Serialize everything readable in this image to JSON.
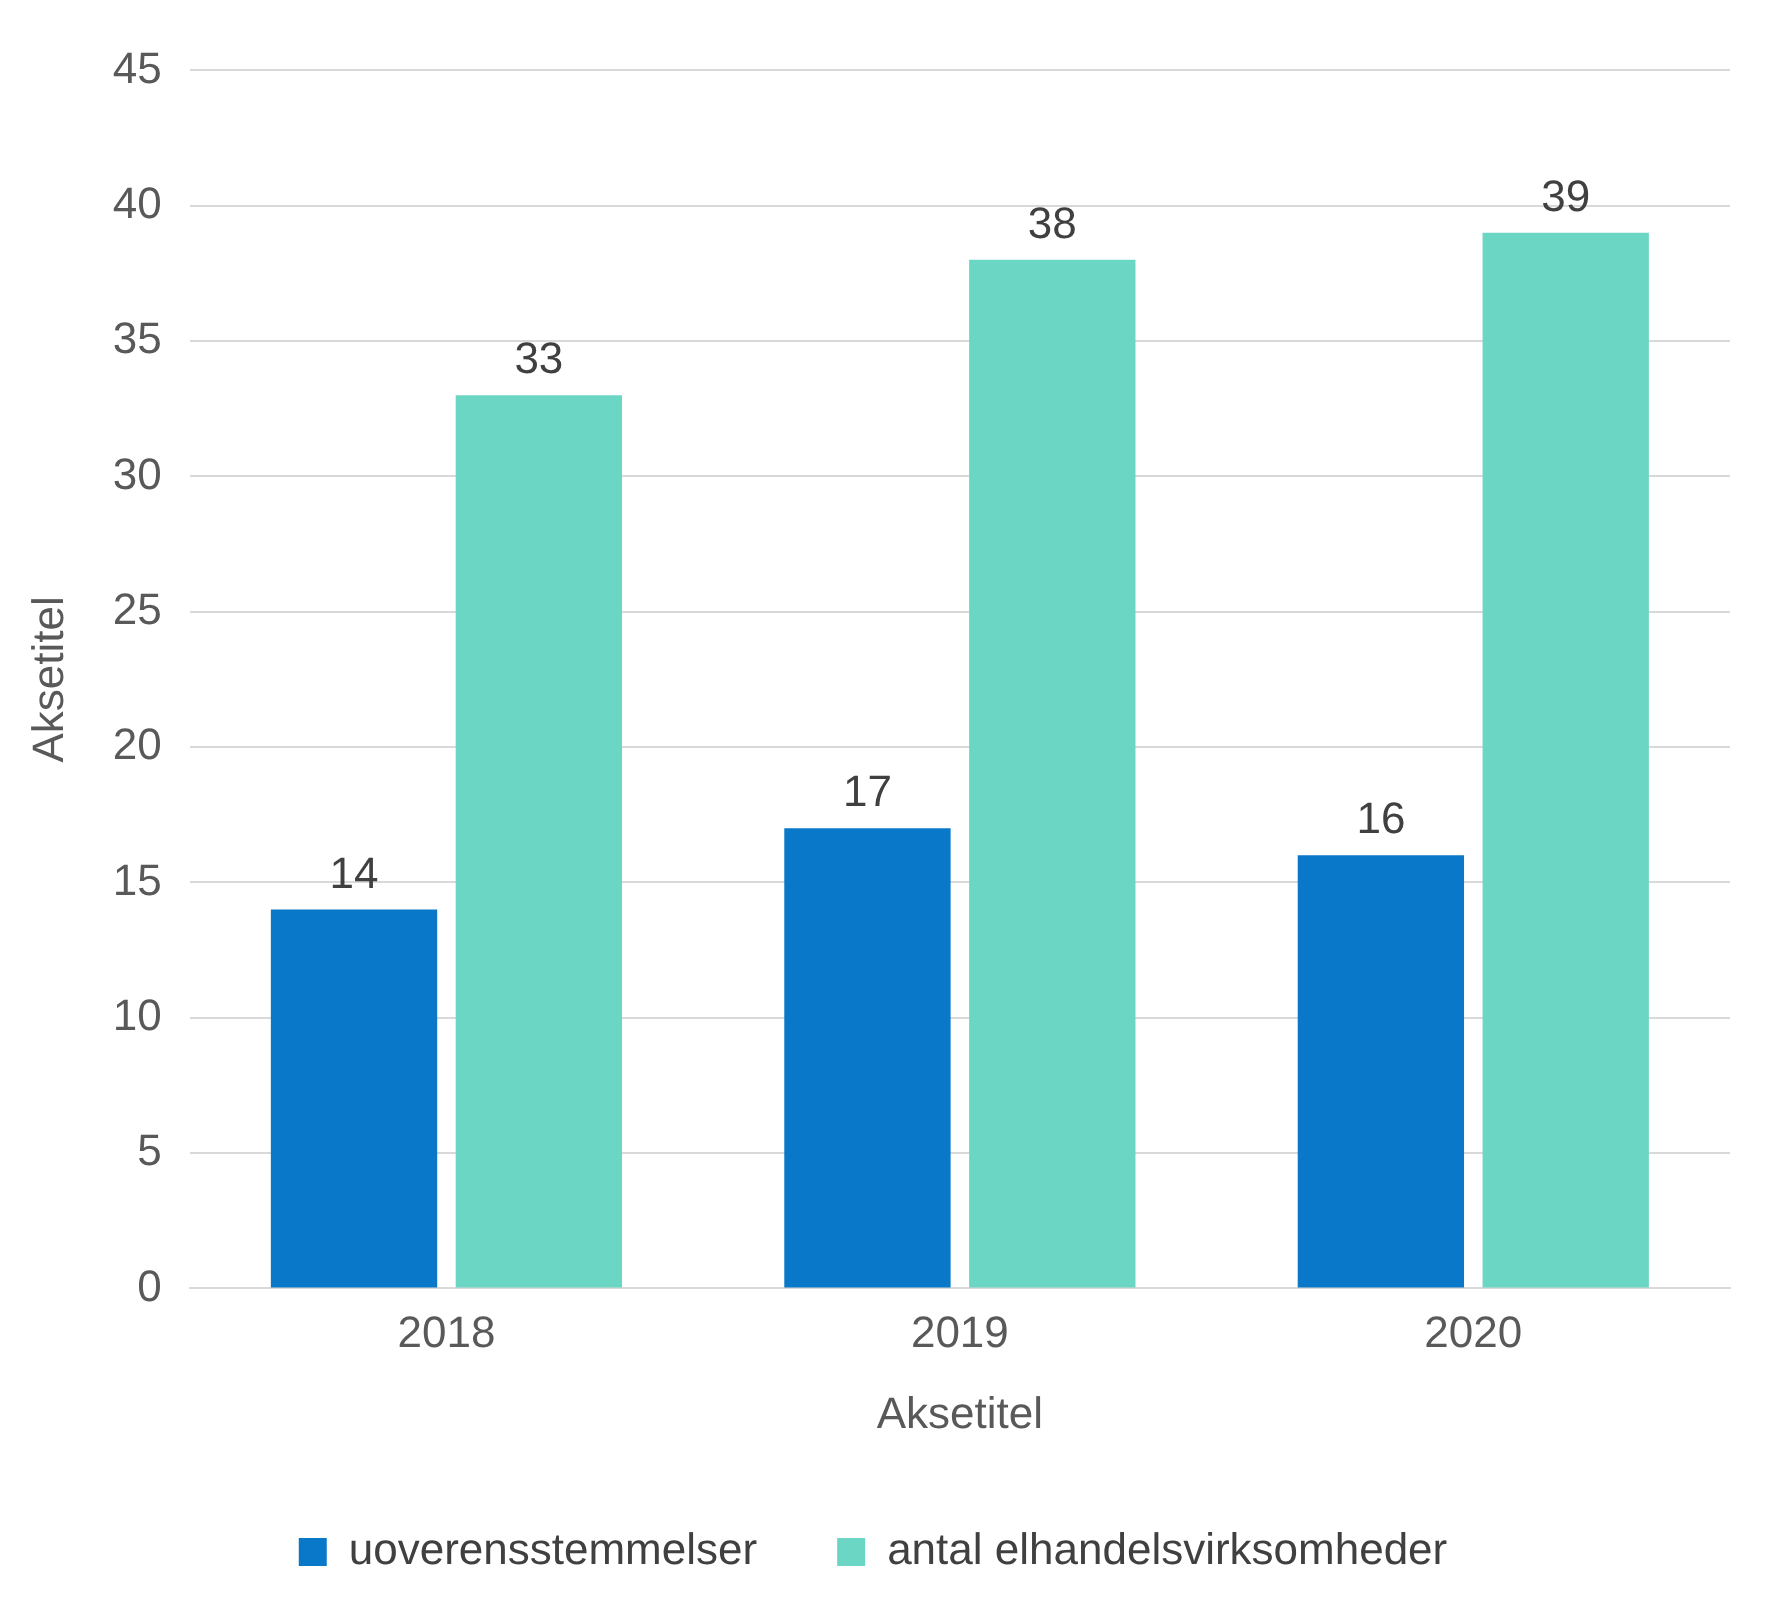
{
  "chart_data": {
    "type": "bar",
    "xlabel": "Aksetitel",
    "ylabel": "Aksetitel",
    "categories": [
      "2018",
      "2019",
      "2020"
    ],
    "series": [
      {
        "name": "uoverensstemmelser",
        "color": "#0a78c8",
        "values": [
          14,
          17,
          16
        ]
      },
      {
        "name": "antal elhandelsvirksomheder",
        "color": "#6cd6c4",
        "values": [
          33,
          38,
          39
        ]
      }
    ],
    "ylim": [
      0,
      45
    ],
    "yticks": [
      0,
      5,
      10,
      15,
      20,
      25,
      30,
      35,
      40,
      45
    ],
    "grid": "y",
    "legend": "bottom",
    "data_labels": true
  }
}
